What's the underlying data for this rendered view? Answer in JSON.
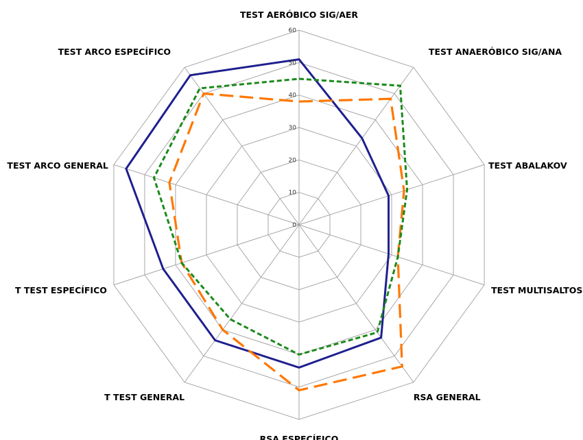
{
  "chart_data": {
    "type": "radar",
    "categories": [
      "TEST AERÓBICO SIG/AER",
      "TEST ANAERÓBICO SIG/ANA",
      "TEST ABALAKOV",
      "TEST MULTISALTOS",
      "RSA GENERAL",
      "RSA ESPECÍFICO",
      "T TEST GENERAL",
      "T TEST ESPECÍFICO",
      "TEST ARCO GENERAL",
      "TEST ARCO ESPECÍFICO"
    ],
    "ticks": [
      "0",
      "10",
      "20",
      "30",
      "40",
      "50",
      "60"
    ],
    "rmin": 0,
    "rmax": 60,
    "grid": true,
    "legend": "none",
    "series": [
      {
        "color": "#1f1f8f",
        "style": "solid",
        "values": [
          51,
          33,
          29,
          29,
          43,
          44,
          44,
          44,
          56,
          57
        ]
      },
      {
        "color": "#ff7700",
        "style": "dashed",
        "values": [
          38,
          48,
          34,
          32,
          54,
          51,
          40,
          38,
          42,
          50
        ]
      },
      {
        "color": "#1a8a1a",
        "style": "dotted",
        "values": [
          45,
          53,
          35,
          32,
          41,
          40,
          36,
          38,
          47,
          52
        ]
      }
    ]
  }
}
